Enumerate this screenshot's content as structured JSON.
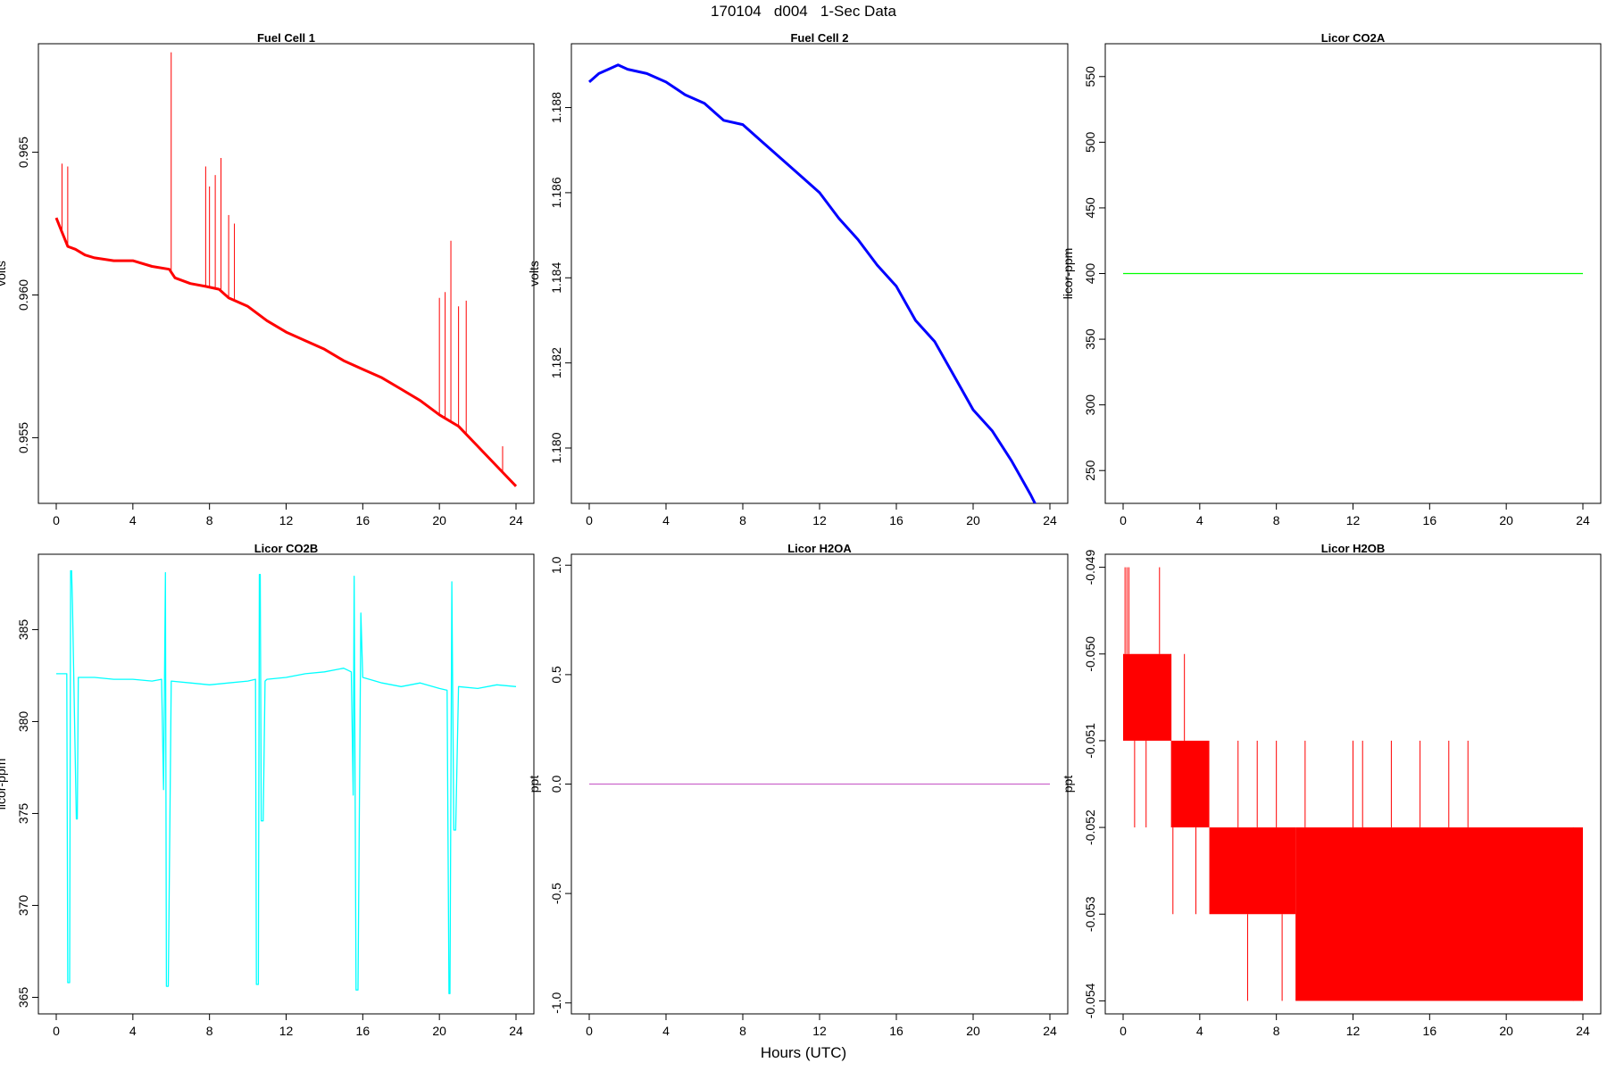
{
  "figure": {
    "title": "170104   d004   1-Sec Data",
    "xlabel": "Hours (UTC)"
  },
  "chart_data": [
    {
      "type": "line",
      "title": "Fuel Cell 1",
      "ylabel": "volts",
      "color": "#ff0000",
      "xlim": [
        0,
        24
      ],
      "ylim": [
        0.9527,
        0.9688
      ],
      "xticks": [
        0,
        4,
        8,
        12,
        16,
        20,
        24
      ],
      "yticks": [
        0.955,
        0.96,
        0.965
      ],
      "ytick_labels": [
        "0.955",
        "0.960",
        "0.965"
      ],
      "x": [
        0,
        0.3,
        0.6,
        1,
        1.5,
        2,
        3,
        4,
        5,
        5.9,
        6.2,
        7,
        7.8,
        8.5,
        9,
        10,
        11,
        12,
        13,
        14,
        15,
        16,
        17,
        18,
        19,
        20,
        21,
        22,
        23,
        24
      ],
      "y": [
        0.9627,
        0.9622,
        0.9617,
        0.9616,
        0.9614,
        0.9613,
        0.9612,
        0.9612,
        0.961,
        0.9609,
        0.9606,
        0.9604,
        0.9603,
        0.9602,
        0.9599,
        0.9596,
        0.9591,
        0.9587,
        0.9584,
        0.9581,
        0.9577,
        0.9574,
        0.9571,
        0.9567,
        0.9563,
        0.9558,
        0.9554,
        0.9547,
        0.954,
        0.9533
      ],
      "spikes": [
        [
          0.3,
          0.9646
        ],
        [
          0.6,
          0.9645
        ],
        [
          6.0,
          0.9685
        ],
        [
          7.8,
          0.9645
        ],
        [
          8.0,
          0.9638
        ],
        [
          8.3,
          0.9642
        ],
        [
          8.6,
          0.9648
        ],
        [
          9.0,
          0.9628
        ],
        [
          9.3,
          0.9625
        ],
        [
          20.0,
          0.9599
        ],
        [
          20.3,
          0.9601
        ],
        [
          20.6,
          0.9619
        ],
        [
          21.0,
          0.9596
        ],
        [
          21.4,
          0.9598
        ],
        [
          23.3,
          0.9547
        ]
      ]
    },
    {
      "type": "line",
      "title": "Fuel Cell 2",
      "ylabel": "volts",
      "color": "#0000ff",
      "xlim": [
        0,
        24
      ],
      "ylim": [
        1.1787,
        1.1895
      ],
      "xticks": [
        0,
        4,
        8,
        12,
        16,
        20,
        24
      ],
      "yticks": [
        1.18,
        1.182,
        1.184,
        1.186,
        1.188
      ],
      "ytick_labels": [
        "1.180",
        "1.182",
        "1.184",
        "1.186",
        "1.188"
      ],
      "x": [
        0,
        0.5,
        1,
        1.5,
        2,
        3,
        4,
        5,
        6,
        7,
        8,
        9,
        10,
        11,
        12,
        13,
        14,
        15,
        16,
        17,
        18,
        19,
        20,
        21,
        22,
        23,
        24
      ],
      "y": [
        1.1886,
        1.1888,
        1.1889,
        1.189,
        1.1889,
        1.1888,
        1.1886,
        1.1883,
        1.1881,
        1.1877,
        1.1876,
        1.1872,
        1.1868,
        1.1864,
        1.186,
        1.1854,
        1.1849,
        1.1843,
        1.1838,
        1.183,
        1.1825,
        1.1817,
        1.1809,
        1.1804,
        1.1797,
        1.1789,
        1.178
      ]
    },
    {
      "type": "line",
      "title": "Licor CO2A",
      "ylabel": "licor-ppm",
      "color": "#00ff00",
      "xlim": [
        0,
        24
      ],
      "ylim": [
        225,
        575
      ],
      "xticks": [
        0,
        4,
        8,
        12,
        16,
        20,
        24
      ],
      "yticks": [
        250,
        300,
        350,
        400,
        450,
        500,
        550
      ],
      "ytick_labels": [
        "250",
        "300",
        "350",
        "400",
        "450",
        "500",
        "550"
      ],
      "x": [
        0,
        24
      ],
      "y": [
        400,
        400
      ]
    },
    {
      "type": "line",
      "title": "Licor CO2B",
      "ylabel": "licor-ppm",
      "color": "#00ffff",
      "xlim": [
        0,
        24
      ],
      "ylim": [
        364.1,
        389.1
      ],
      "xticks": [
        0,
        4,
        8,
        12,
        16,
        20,
        24
      ],
      "yticks": [
        365,
        370,
        375,
        380,
        385
      ],
      "ytick_labels": [
        "365",
        "370",
        "375",
        "380",
        "385"
      ],
      "x": [
        0,
        0.55,
        0.6,
        0.7,
        0.75,
        0.8,
        0.85,
        1.05,
        1.1,
        1.15,
        1.25,
        2,
        3,
        4,
        5,
        5.5,
        5.6,
        5.7,
        5.75,
        5.85,
        6,
        7,
        8,
        9,
        10,
        10.4,
        10.45,
        10.55,
        10.6,
        10.65,
        10.7,
        10.8,
        10.9,
        11,
        12,
        13,
        14,
        15,
        15.4,
        15.5,
        15.55,
        15.65,
        15.75,
        15.9,
        16,
        17,
        18,
        19,
        20,
        20.4,
        20.5,
        20.55,
        20.65,
        20.75,
        20.85,
        21,
        22,
        23,
        24
      ],
      "y": [
        382.6,
        382.6,
        365.8,
        365.8,
        388.2,
        388.2,
        386.3,
        374.7,
        374.7,
        382.4,
        382.4,
        382.4,
        382.3,
        382.3,
        382.2,
        382.3,
        376.3,
        388.1,
        365.6,
        365.6,
        382.2,
        382.1,
        382.0,
        382.1,
        382.2,
        382.3,
        365.7,
        365.7,
        388.0,
        388.0,
        374.6,
        374.6,
        382.2,
        382.3,
        382.4,
        382.6,
        382.7,
        382.9,
        382.7,
        376.0,
        387.9,
        365.4,
        365.4,
        385.9,
        382.4,
        382.1,
        381.9,
        382.1,
        381.8,
        381.7,
        365.2,
        365.2,
        387.6,
        374.1,
        374.1,
        381.9,
        381.8,
        382.0,
        381.9
      ]
    },
    {
      "type": "line",
      "title": "Licor H2OA",
      "ylabel": "ppt",
      "color": "#cc66cc",
      "xlim": [
        0,
        24
      ],
      "ylim": [
        -1.05,
        1.05
      ],
      "xticks": [
        0,
        4,
        8,
        12,
        16,
        20,
        24
      ],
      "yticks": [
        -1,
        -0.5,
        0,
        0.5,
        1
      ],
      "ytick_labels": [
        "-1.0",
        "-0.5",
        "0.0",
        "0.5",
        "1.0"
      ],
      "x": [
        0,
        24
      ],
      "y": [
        0,
        0
      ]
    },
    {
      "type": "line",
      "title": "Licor H2OB",
      "ylabel": "ppt",
      "color": "#ff0000",
      "xlim": [
        0,
        24
      ],
      "ylim": [
        -0.05415,
        -0.04885
      ],
      "xticks": [
        0,
        4,
        8,
        12,
        16,
        20,
        24
      ],
      "yticks": [
        -0.054,
        -0.053,
        -0.052,
        -0.051,
        -0.05,
        -0.049
      ],
      "ytick_labels": [
        "-0.054",
        "-0.053",
        "-0.052",
        "-0.051",
        "-0.050",
        "-0.049"
      ],
      "levels": [
        {
          "x0": 0.0,
          "x1": 2.5,
          "lo": -0.051,
          "hi": -0.05
        },
        {
          "x0": 2.5,
          "x1": 4.5,
          "lo": -0.052,
          "hi": -0.051
        },
        {
          "x0": 4.5,
          "x1": 9.0,
          "lo": -0.053,
          "hi": -0.052
        },
        {
          "x0": 9.0,
          "x1": 24.0,
          "lo": -0.054,
          "hi": -0.052
        }
      ],
      "spikes": [
        [
          0.1,
          -0.049
        ],
        [
          0.2,
          -0.049
        ],
        [
          0.3,
          -0.049
        ],
        [
          1.9,
          -0.049
        ],
        [
          1.2,
          -0.052
        ],
        [
          0.6,
          -0.052
        ],
        [
          2.5,
          -0.05
        ],
        [
          3.2,
          -0.05
        ],
        [
          2.6,
          -0.053
        ],
        [
          3.8,
          -0.053
        ],
        [
          4.2,
          -0.052
        ],
        [
          6.0,
          -0.051
        ],
        [
          7.0,
          -0.051
        ],
        [
          8.0,
          -0.051
        ],
        [
          9.5,
          -0.051
        ],
        [
          12.0,
          -0.051
        ],
        [
          15.5,
          -0.051
        ],
        [
          17.0,
          -0.051
        ],
        [
          18.0,
          -0.051
        ],
        [
          6.5,
          -0.054
        ],
        [
          8.3,
          -0.054
        ],
        [
          12.5,
          -0.051
        ],
        [
          14.0,
          -0.051
        ],
        [
          23.5,
          -0.052
        ]
      ]
    }
  ]
}
